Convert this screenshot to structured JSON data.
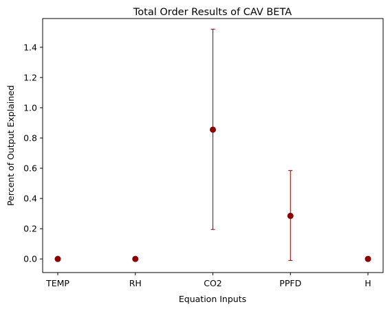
{
  "chart_data": {
    "type": "scatter",
    "title": "Total Order Results of CAV BETA",
    "xlabel": "Equation Inputs",
    "ylabel": "Percent of Output Explained",
    "categories": [
      "TEMP",
      "RH",
      "CO2",
      "PPFD",
      "H"
    ],
    "values": [
      0.0,
      0.0,
      0.855,
      0.285,
      0.0
    ],
    "error_low": [
      0.0,
      0.0,
      0.195,
      -0.01,
      0.0
    ],
    "error_high": [
      0.0,
      0.0,
      1.52,
      0.585,
      0.0
    ],
    "ylim": [
      -0.09,
      1.59
    ],
    "yticks": [
      0.0,
      0.2,
      0.4,
      0.6,
      0.8,
      1.0,
      1.2,
      1.4
    ],
    "ytick_labels": [
      "0.0",
      "0.2",
      "0.4",
      "0.6",
      "0.8",
      "1.0",
      "1.2",
      "1.4"
    ],
    "grid": false,
    "colors": {
      "marker": "#8b0000",
      "errorbar": "#8b0000",
      "axes": "#000000"
    }
  }
}
